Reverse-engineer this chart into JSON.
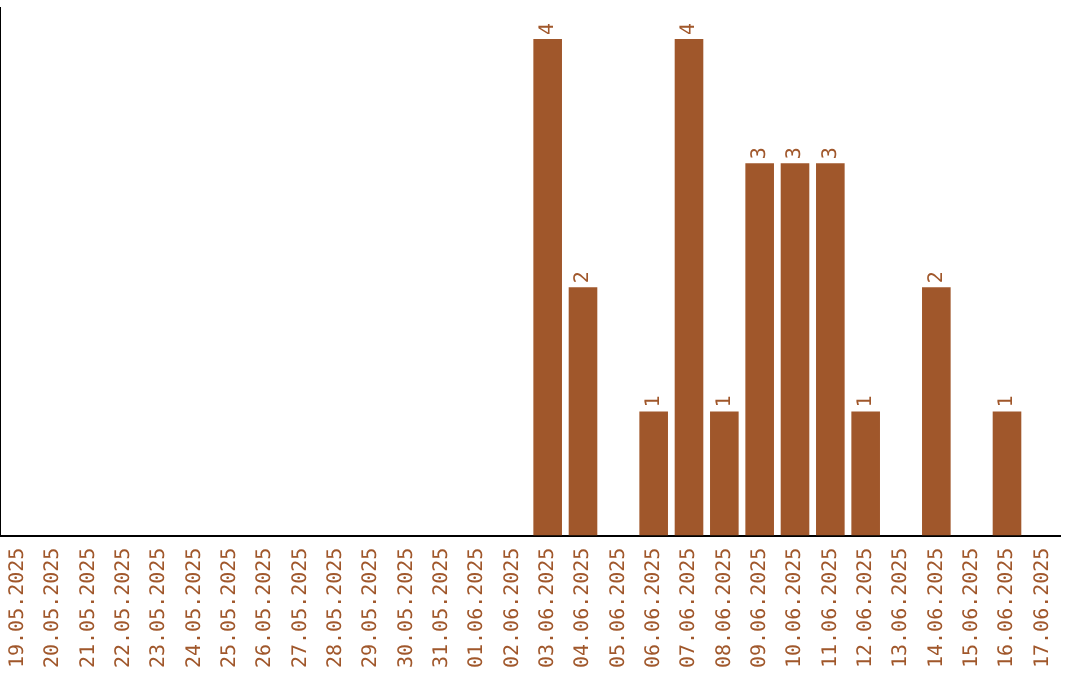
{
  "chart_data": {
    "type": "bar",
    "categories": [
      "19.05.2025",
      "20.05.2025",
      "21.05.2025",
      "22.05.2025",
      "23.05.2025",
      "24.05.2025",
      "25.05.2025",
      "26.05.2025",
      "27.05.2025",
      "28.05.2025",
      "29.05.2025",
      "30.05.2025",
      "31.05.2025",
      "01.06.2025",
      "02.06.2025",
      "03.06.2025",
      "04.06.2025",
      "05.06.2025",
      "06.06.2025",
      "07.06.2025",
      "08.06.2025",
      "09.06.2025",
      "10.06.2025",
      "11.06.2025",
      "12.06.2025",
      "13.06.2025",
      "14.06.2025",
      "15.06.2025",
      "16.06.2025",
      "17.06.2025"
    ],
    "values": [
      null,
      null,
      null,
      null,
      null,
      null,
      null,
      null,
      null,
      null,
      null,
      null,
      null,
      null,
      null,
      4,
      2,
      null,
      1,
      4,
      1,
      3,
      3,
      3,
      1,
      null,
      2,
      null,
      1,
      null
    ],
    "value_labels": [
      null,
      null,
      null,
      null,
      null,
      null,
      null,
      null,
      null,
      null,
      null,
      null,
      null,
      null,
      null,
      "4",
      "2",
      null,
      "1",
      "4",
      "1",
      "3",
      "3",
      "3",
      "1",
      null,
      "2",
      null,
      "1",
      null
    ],
    "color": "#a0572b",
    "ylim": [
      0,
      4.25
    ],
    "tick_labels": "x",
    "grid": false,
    "legend": false
  }
}
